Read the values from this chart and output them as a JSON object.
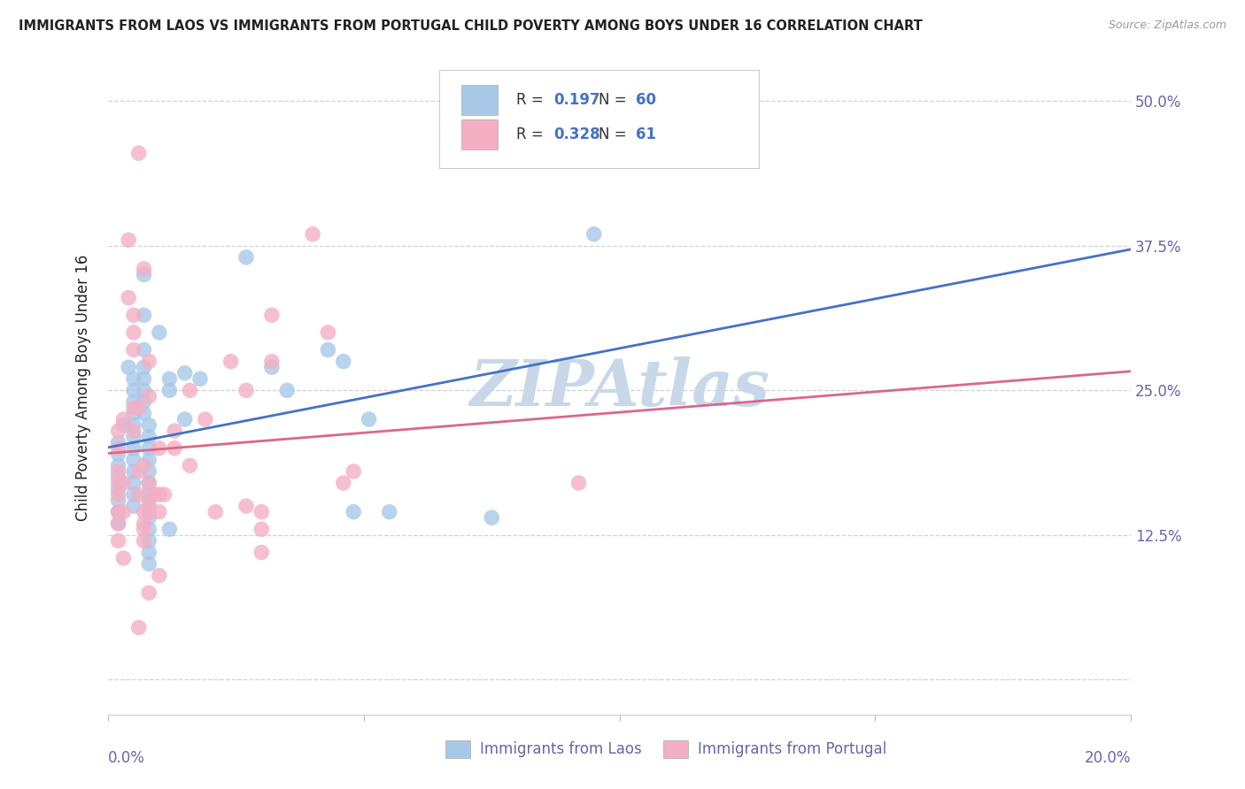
{
  "title": "IMMIGRANTS FROM LAOS VS IMMIGRANTS FROM PORTUGAL CHILD POVERTY AMONG BOYS UNDER 16 CORRELATION CHART",
  "source": "Source: ZipAtlas.com",
  "ylabel": "Child Poverty Among Boys Under 16",
  "x_min": 0.0,
  "x_max": 0.2,
  "y_min": -0.03,
  "y_max": 0.535,
  "legend_r_laos": "0.197",
  "legend_n_laos": "60",
  "legend_r_portugal": "0.328",
  "legend_n_portugal": "61",
  "laos_color": "#a8c8e8",
  "portugal_color": "#f4afc4",
  "laos_line_color": "#4472c4",
  "portugal_line_color": "#d9688a",
  "legend_blue_color": "#4472c4",
  "watermark_color": "#c8d8e8",
  "laos_scatter": [
    [
      0.002,
      0.205
    ],
    [
      0.002,
      0.195
    ],
    [
      0.002,
      0.185
    ],
    [
      0.002,
      0.175
    ],
    [
      0.002,
      0.165
    ],
    [
      0.002,
      0.155
    ],
    [
      0.002,
      0.145
    ],
    [
      0.002,
      0.135
    ],
    [
      0.003,
      0.22
    ],
    [
      0.004,
      0.27
    ],
    [
      0.005,
      0.26
    ],
    [
      0.005,
      0.25
    ],
    [
      0.005,
      0.24
    ],
    [
      0.005,
      0.23
    ],
    [
      0.005,
      0.22
    ],
    [
      0.005,
      0.21
    ],
    [
      0.005,
      0.2
    ],
    [
      0.005,
      0.19
    ],
    [
      0.005,
      0.18
    ],
    [
      0.005,
      0.17
    ],
    [
      0.005,
      0.16
    ],
    [
      0.005,
      0.15
    ],
    [
      0.007,
      0.35
    ],
    [
      0.007,
      0.315
    ],
    [
      0.007,
      0.285
    ],
    [
      0.007,
      0.27
    ],
    [
      0.007,
      0.26
    ],
    [
      0.007,
      0.25
    ],
    [
      0.007,
      0.24
    ],
    [
      0.007,
      0.23
    ],
    [
      0.008,
      0.22
    ],
    [
      0.008,
      0.21
    ],
    [
      0.008,
      0.2
    ],
    [
      0.008,
      0.19
    ],
    [
      0.008,
      0.18
    ],
    [
      0.008,
      0.17
    ],
    [
      0.008,
      0.16
    ],
    [
      0.008,
      0.15
    ],
    [
      0.008,
      0.14
    ],
    [
      0.008,
      0.13
    ],
    [
      0.008,
      0.12
    ],
    [
      0.008,
      0.11
    ],
    [
      0.008,
      0.1
    ],
    [
      0.01,
      0.3
    ],
    [
      0.012,
      0.26
    ],
    [
      0.012,
      0.25
    ],
    [
      0.012,
      0.13
    ],
    [
      0.015,
      0.265
    ],
    [
      0.015,
      0.225
    ],
    [
      0.018,
      0.26
    ],
    [
      0.027,
      0.365
    ],
    [
      0.032,
      0.27
    ],
    [
      0.035,
      0.25
    ],
    [
      0.043,
      0.285
    ],
    [
      0.046,
      0.275
    ],
    [
      0.048,
      0.145
    ],
    [
      0.051,
      0.225
    ],
    [
      0.055,
      0.145
    ],
    [
      0.075,
      0.14
    ],
    [
      0.095,
      0.385
    ]
  ],
  "portugal_scatter": [
    [
      0.002,
      0.215
    ],
    [
      0.002,
      0.2
    ],
    [
      0.002,
      0.18
    ],
    [
      0.002,
      0.17
    ],
    [
      0.002,
      0.16
    ],
    [
      0.002,
      0.145
    ],
    [
      0.002,
      0.135
    ],
    [
      0.002,
      0.12
    ],
    [
      0.003,
      0.225
    ],
    [
      0.003,
      0.17
    ],
    [
      0.003,
      0.145
    ],
    [
      0.003,
      0.105
    ],
    [
      0.004,
      0.38
    ],
    [
      0.004,
      0.33
    ],
    [
      0.005,
      0.315
    ],
    [
      0.005,
      0.3
    ],
    [
      0.005,
      0.285
    ],
    [
      0.005,
      0.235
    ],
    [
      0.005,
      0.215
    ],
    [
      0.006,
      0.455
    ],
    [
      0.006,
      0.235
    ],
    [
      0.006,
      0.18
    ],
    [
      0.006,
      0.16
    ],
    [
      0.006,
      0.045
    ],
    [
      0.007,
      0.355
    ],
    [
      0.007,
      0.185
    ],
    [
      0.007,
      0.145
    ],
    [
      0.007,
      0.135
    ],
    [
      0.007,
      0.13
    ],
    [
      0.007,
      0.12
    ],
    [
      0.008,
      0.275
    ],
    [
      0.008,
      0.245
    ],
    [
      0.008,
      0.17
    ],
    [
      0.008,
      0.155
    ],
    [
      0.008,
      0.145
    ],
    [
      0.008,
      0.075
    ],
    [
      0.009,
      0.16
    ],
    [
      0.01,
      0.2
    ],
    [
      0.01,
      0.16
    ],
    [
      0.01,
      0.145
    ],
    [
      0.01,
      0.09
    ],
    [
      0.011,
      0.16
    ],
    [
      0.013,
      0.2
    ],
    [
      0.013,
      0.215
    ],
    [
      0.016,
      0.25
    ],
    [
      0.016,
      0.185
    ],
    [
      0.019,
      0.225
    ],
    [
      0.021,
      0.145
    ],
    [
      0.024,
      0.275
    ],
    [
      0.027,
      0.25
    ],
    [
      0.027,
      0.15
    ],
    [
      0.03,
      0.145
    ],
    [
      0.03,
      0.13
    ],
    [
      0.03,
      0.11
    ],
    [
      0.032,
      0.315
    ],
    [
      0.032,
      0.275
    ],
    [
      0.04,
      0.385
    ],
    [
      0.043,
      0.3
    ],
    [
      0.046,
      0.17
    ],
    [
      0.048,
      0.18
    ],
    [
      0.092,
      0.17
    ]
  ],
  "background_color": "#ffffff",
  "grid_color": "#d0d0d8",
  "title_color": "#222222",
  "axis_color": "#6666aa",
  "y_ticks": [
    0.0,
    0.125,
    0.25,
    0.375,
    0.5
  ],
  "y_tick_labels": [
    "",
    "12.5%",
    "25.0%",
    "37.5%",
    "50.0%"
  ],
  "x_ticks": [
    0.0,
    0.05,
    0.1,
    0.15,
    0.2
  ]
}
